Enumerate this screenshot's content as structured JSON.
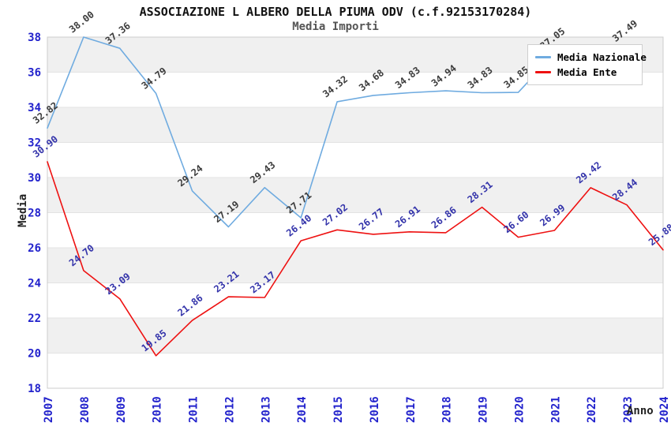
{
  "chart_data": {
    "type": "line",
    "title": "ASSOCIAZIONE L ALBERO DELLA PIUMA ODV (c.f.92153170284)",
    "subtitle": "Media Importi",
    "xlabel": "Anno",
    "ylabel": "Media",
    "x_categories": [
      "2007",
      "2008",
      "2009",
      "2010",
      "2011",
      "2012",
      "2013",
      "2014",
      "2015",
      "2016",
      "2017",
      "2018",
      "2019",
      "2020",
      "2021",
      "2022",
      "2023",
      "2024"
    ],
    "ylim": [
      18,
      38
    ],
    "y_ticks": [
      18,
      20,
      22,
      24,
      26,
      28,
      30,
      32,
      34,
      36,
      38
    ],
    "grid": "horizontal-bands",
    "legend_position": "top-right",
    "series": [
      {
        "name": "Media Nazionale",
        "color": "#6FABE0",
        "label_color": "#3C3C3C",
        "values": [
          32.82,
          38.0,
          37.36,
          34.79,
          29.24,
          27.19,
          29.43,
          27.71,
          34.32,
          34.68,
          34.83,
          34.94,
          34.83,
          34.85,
          37.05,
          null,
          37.49,
          null
        ]
      },
      {
        "name": "Media Ente",
        "color": "#EE1111",
        "label_color": "#3333AA",
        "values": [
          30.9,
          24.7,
          23.09,
          19.85,
          21.86,
          23.21,
          23.17,
          26.4,
          27.02,
          26.77,
          26.91,
          26.86,
          28.31,
          26.6,
          26.99,
          29.42,
          28.44,
          25.88
        ]
      }
    ]
  },
  "colors": {
    "axis_tick": "#2222CC",
    "band": "#F0F0F0",
    "grid_line": "#E3E3E3",
    "plot_border": "#CCCCCC",
    "legend_bg": "#FFFFFF",
    "legend_border": "#CFCFCF"
  }
}
